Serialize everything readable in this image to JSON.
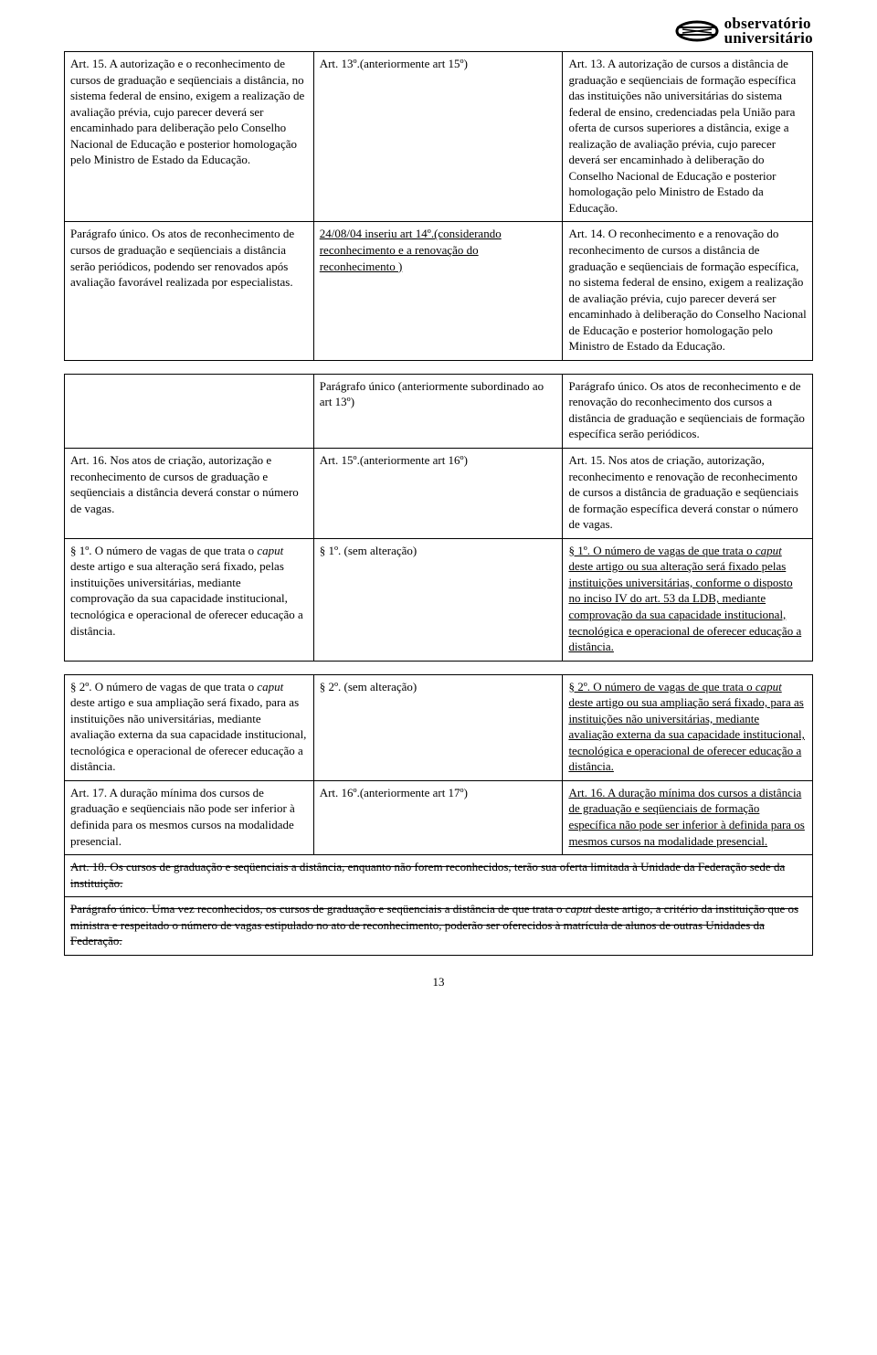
{
  "logo": {
    "line1": "observatório",
    "line2": "universitário"
  },
  "tables": [
    {
      "rows": [
        {
          "c1": {
            "text": "Art. 15. A autorização e o reconhecimento de cursos de graduação e seqüenciais a distância, no sistema federal de ensino, exigem a realização de avaliação prévia, cujo parecer deverá ser encaminhado para deliberação pelo Conselho Nacional de Educação e posterior homologação pelo Ministro de Estado da Educação."
          },
          "c2": {
            "text": "Art. 13º.(anteriormente art 15º)"
          },
          "c3": {
            "text": "Art. 13. A autorização de cursos a distância de graduação e seqüenciais de formação específica das instituições não universitárias do sistema federal de ensino, credenciadas pela União para oferta de cursos superiores a distância, exige a realização de avaliação prévia, cujo parecer deverá ser encaminhado à deliberação do Conselho Nacional de Educação e posterior homologação pelo Ministro de Estado da Educação."
          }
        },
        {
          "c1": {
            "text": "Parágrafo único. Os atos de reconhecimento de cursos de graduação e seqüenciais a distância serão periódicos, podendo ser renovados após avaliação favorável realizada por especialistas."
          },
          "c2": {
            "ul": "24/08/04 inseriu art 14º.(considerando reconhecimento e a renovação do reconhecimento )"
          },
          "c3": {
            "text": "Art. 14. O reconhecimento e a renovação do reconhecimento de cursos a distância de graduação e seqüenciais de formação específica, no sistema federal de ensino, exigem a realização de avaliação prévia, cujo parecer deverá ser encaminhado à deliberação do Conselho Nacional de Educação e posterior homologação pelo Ministro de Estado da Educação."
          }
        }
      ]
    },
    {
      "rows": [
        {
          "c1": {
            "text": ""
          },
          "c2": {
            "text": "Parágrafo único (anteriormente subordinado ao art 13º)"
          },
          "c3": {
            "text": "Parágrafo único. Os atos de reconhecimento e de renovação do reconhecimento dos cursos a distância de graduação e seqüenciais de formação específica serão periódicos."
          }
        },
        {
          "c1": {
            "text": "Art. 16.  Nos atos de criação, autorização e reconhecimento de cursos de graduação e seqüenciais a distância deverá constar o número de vagas."
          },
          "c2": {
            "text": "Art. 15º.(anteriormente art 16º)"
          },
          "c3": {
            "text": "Art. 15.  Nos atos de criação, autorização, reconhecimento e renovação de reconhecimento de cursos a distância de graduação e seqüenciais de formação específica deverá constar o número de vagas."
          }
        },
        {
          "c1": {
            "parts": [
              {
                "t": "§ 1º. O número de vagas de que trata o "
              },
              {
                "t": "caput",
                "i": true
              },
              {
                "t": " deste artigo e sua alteração será fixado, pelas instituições universitárias, mediante comprovação da sua capacidade institucional, tecnológica e operacional de oferecer educação a distância."
              }
            ]
          },
          "c2": {
            "text": "§ 1º. (sem alteração)"
          },
          "c3": {
            "parts_ul": [
              {
                "t": "§ 1º. O número de vagas de que trata o "
              },
              {
                "t": "caput",
                "i": true
              },
              {
                "t": " deste artigo ou sua alteração será fixado pelas instituições universitárias, conforme o disposto no inciso IV do art. 53 da LDB, mediante comprovação da sua capacidade institucional, tecnológica e operacional de oferecer educação a distância."
              }
            ]
          }
        }
      ]
    },
    {
      "rows": [
        {
          "c1": {
            "parts": [
              {
                "t": "§ 2º. O número de vagas de que trata o "
              },
              {
                "t": "caput",
                "i": true
              },
              {
                "t": " deste artigo e sua ampliação será fixado, para as instituições não universitárias, mediante avaliação externa da sua capacidade institucional, tecnológica e operacional de oferecer educação a distância."
              }
            ]
          },
          "c2": {
            "text": "§ 2º. (sem alteração)"
          },
          "c3": {
            "parts_ul": [
              {
                "t": "§ 2º. O número de vagas de que trata o "
              },
              {
                "t": "caput",
                "i": true
              },
              {
                "t": " deste artigo ou sua ampliação será fixado, para as instituições não universitárias, mediante avaliação externa da sua capacidade institucional, tecnológica e operacional de oferecer educação a distância."
              }
            ]
          }
        },
        {
          "c1": {
            "text": "Art. 17. A duração mínima dos cursos de graduação e seqüenciais não pode ser inferior à definida para os mesmos cursos na modalidade presencial."
          },
          "c2": {
            "text": "Art. 16º.(anteriormente art 17º)"
          },
          "c3": {
            "ul": "Art. 16. A duração mínima dos cursos a distância de graduação e seqüenciais de formação específica não pode ser inferior à definida para os mesmos cursos na modalidade presencial."
          }
        },
        {
          "colspan": 3,
          "c1": {
            "strike": "Art. 18. Os cursos de graduação e seqüenciais a distância, enquanto não forem reconhecidos, terão sua oferta limitada à Unidade da Federação sede da instituição."
          }
        },
        {
          "colspan": 3,
          "c1": {
            "parts_strike": [
              {
                "t": "Parágrafo único. Uma vez reconhecidos, os cursos de graduação e seqüenciais a distância de que trata o "
              },
              {
                "t": "caput",
                "i": true
              },
              {
                "t": " deste artigo, a critério da instituição que os ministra e respeitado o número de vagas estipulado no ato de reconhecimento, poderão ser oferecidos à matrícula de alunos de outras Unidades da Federação."
              }
            ]
          }
        }
      ]
    }
  ],
  "page_number": "13"
}
